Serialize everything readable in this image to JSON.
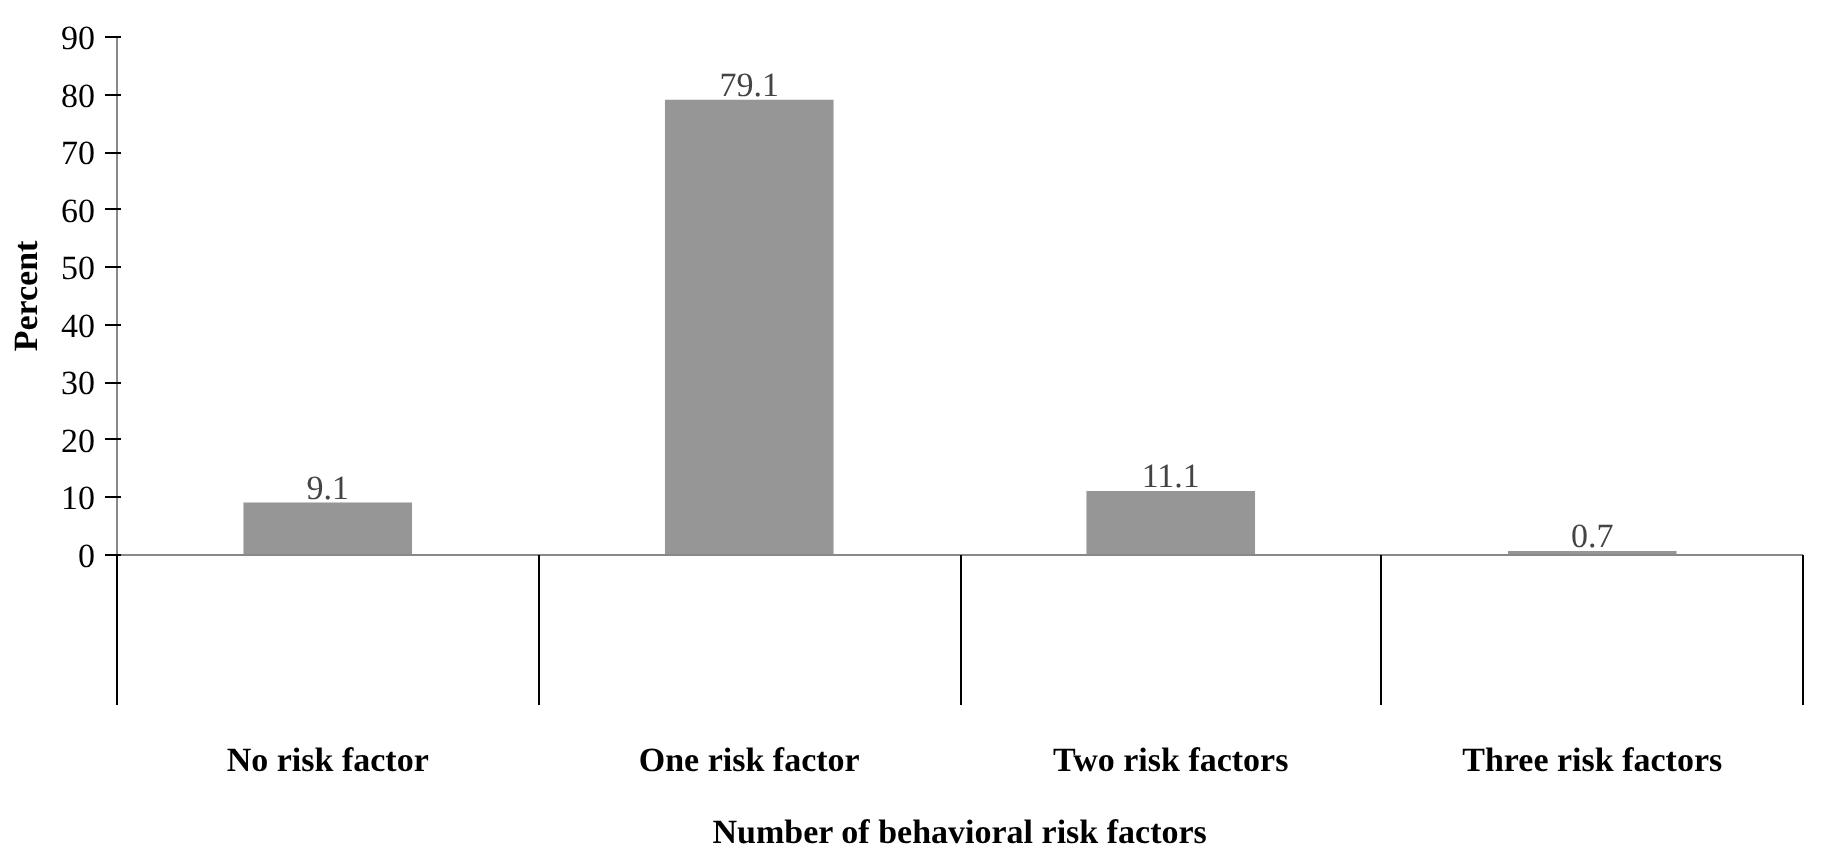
{
  "chart_data": {
    "type": "bar",
    "xlabel": "Number of behavioral risk factors",
    "ylabel": "Percent",
    "categories": [
      "No risk factor",
      "One risk factor",
      "Two risk factors",
      "Three risk factors"
    ],
    "values": [
      9.1,
      79.1,
      11.1,
      0.7
    ],
    "color": "#969696",
    "data_labels": true,
    "ylim": [
      0,
      90
    ],
    "yticks": [
      0,
      10,
      20,
      30,
      40,
      50,
      60,
      70,
      80,
      90
    ],
    "grid": false
  }
}
